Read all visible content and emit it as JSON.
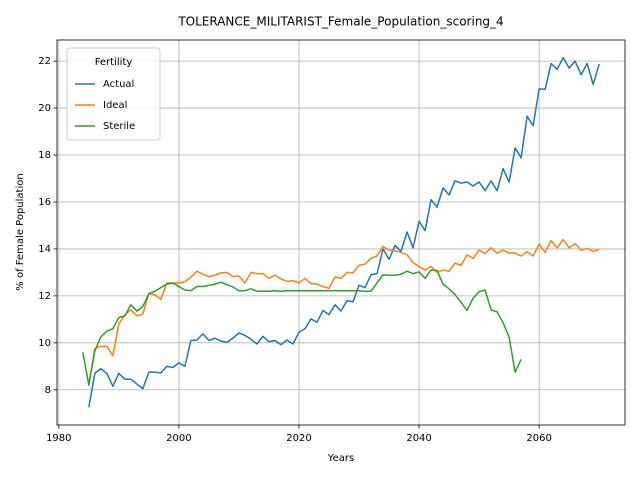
{
  "chart_data": {
    "type": "line",
    "title": "TOLERANCE_MILITARIST_Female_Population_scoring_4",
    "xlabel": "Years",
    "ylabel": "% of Female Population",
    "legend_title": "Fertility",
    "legend": "upper left",
    "grid": true,
    "xlim": [
      1979.7,
      2074.3
    ],
    "ylim": [
      6.5,
      22.9
    ],
    "xticks": [
      1980,
      2000,
      2020,
      2040,
      2060
    ],
    "yticks": [
      8,
      10,
      12,
      14,
      16,
      18,
      20,
      22
    ],
    "x": [
      1984,
      1985,
      1986,
      1987,
      1988,
      1989,
      1990,
      1991,
      1992,
      1993,
      1994,
      1995,
      1996,
      1997,
      1998,
      1999,
      2000,
      2001,
      2002,
      2003,
      2004,
      2005,
      2006,
      2007,
      2008,
      2009,
      2010,
      2011,
      2012,
      2013,
      2014,
      2015,
      2016,
      2017,
      2018,
      2019,
      2020,
      2021,
      2022,
      2023,
      2024,
      2025,
      2026,
      2027,
      2028,
      2029,
      2030,
      2031,
      2032,
      2033,
      2034,
      2035,
      2036,
      2037,
      2038,
      2039,
      2040,
      2041,
      2042,
      2043,
      2044,
      2045,
      2046,
      2047,
      2048,
      2049,
      2050,
      2051,
      2052,
      2053,
      2054,
      2055,
      2056,
      2057,
      2058,
      2059,
      2060,
      2061,
      2062,
      2063,
      2064,
      2065,
      2066,
      2067,
      2068,
      2069,
      2070
    ],
    "series": [
      {
        "name": "Actual",
        "color": "#1f77b4",
        "values": [
          null,
          7.25,
          8.7,
          8.9,
          8.7,
          8.15,
          8.7,
          8.45,
          8.45,
          8.25,
          8.05,
          8.75,
          8.75,
          8.72,
          9.0,
          8.95,
          9.15,
          9.0,
          10.1,
          10.12,
          10.38,
          10.1,
          10.2,
          10.08,
          10.02,
          10.2,
          10.42,
          10.32,
          10.15,
          9.95,
          10.28,
          10.05,
          10.1,
          9.92,
          10.12,
          9.95,
          10.45,
          10.6,
          11.02,
          10.88,
          11.38,
          11.2,
          11.62,
          11.35,
          11.8,
          11.75,
          12.45,
          12.35,
          12.9,
          12.95,
          14.0,
          13.55,
          14.15,
          13.9,
          14.72,
          14.05,
          15.18,
          14.78,
          16.1,
          15.78,
          16.6,
          16.3,
          16.9,
          16.8,
          16.85,
          16.68,
          16.85,
          16.48,
          16.9,
          16.48,
          17.42,
          16.85,
          18.3,
          17.88,
          19.65,
          19.25,
          20.82,
          20.8,
          21.9,
          21.65,
          22.15,
          21.7,
          22.0,
          21.42,
          21.9,
          21.0,
          21.88
        ]
      },
      {
        "name": "Ideal",
        "color": "#ff7f0e",
        "values": [
          null,
          8.25,
          9.75,
          9.85,
          9.85,
          9.45,
          10.8,
          11.2,
          11.4,
          11.15,
          11.22,
          12.1,
          12.05,
          11.85,
          12.55,
          12.55,
          12.55,
          12.6,
          12.8,
          13.05,
          12.92,
          12.82,
          12.88,
          12.98,
          13.0,
          12.82,
          12.85,
          12.55,
          13.0,
          12.95,
          12.95,
          12.75,
          12.88,
          12.72,
          12.62,
          12.65,
          12.55,
          12.75,
          12.52,
          12.5,
          12.4,
          12.32,
          12.8,
          12.75,
          13.0,
          12.98,
          13.3,
          13.35,
          13.6,
          13.7,
          14.1,
          13.95,
          13.92,
          13.85,
          13.75,
          13.42,
          13.25,
          13.1,
          13.25,
          13.0,
          13.1,
          13.05,
          13.4,
          13.3,
          13.75,
          13.6,
          13.95,
          13.8,
          14.05,
          13.82,
          13.95,
          13.82,
          13.82,
          13.7,
          13.88,
          13.7,
          14.2,
          13.85,
          14.35,
          14.05,
          14.4,
          14.05,
          14.22,
          13.95,
          14.02,
          13.9,
          13.98
        ]
      },
      {
        "name": "Sterile",
        "color": "#2ca02c",
        "values": [
          9.6,
          8.2,
          9.65,
          10.25,
          10.5,
          10.6,
          11.08,
          11.15,
          11.62,
          11.35,
          11.55,
          12.1,
          12.2,
          12.35,
          12.5,
          12.55,
          12.4,
          12.25,
          12.22,
          12.4,
          12.4,
          12.45,
          12.5,
          12.58,
          12.48,
          12.38,
          12.22,
          12.22,
          12.3,
          12.2,
          12.2,
          12.2,
          12.22,
          12.2,
          12.22,
          12.22,
          12.22,
          12.22,
          12.22,
          12.22,
          12.22,
          12.22,
          12.22,
          12.22,
          12.22,
          12.22,
          12.22,
          12.2,
          12.2,
          12.55,
          12.9,
          12.88,
          12.88,
          12.92,
          13.05,
          12.95,
          13.02,
          12.75,
          13.1,
          13.08,
          12.5,
          12.3,
          12.05,
          11.72,
          11.38,
          11.9,
          12.18,
          12.25,
          11.4,
          11.32,
          10.85,
          10.25,
          8.75,
          9.3,
          null,
          null,
          null,
          null,
          null,
          null,
          null,
          null,
          null,
          null,
          null,
          null,
          null
        ]
      }
    ]
  }
}
